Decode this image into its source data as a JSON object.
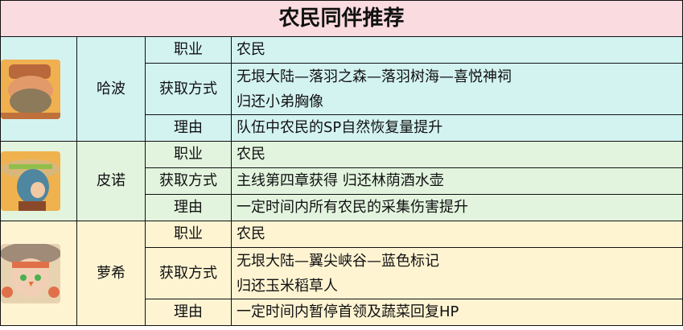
{
  "title": "农民同伴推荐",
  "labels": {
    "job": "职业",
    "obtain": "获取方式",
    "reason": "理由"
  },
  "companions": [
    {
      "name": "哈波",
      "avatar": "habo-portrait",
      "job": "农民",
      "obtain_lines": [
        "无垠大陆—落羽之森—落羽树海—喜悦神祠",
        "归还小弟胸像"
      ],
      "reason": "队伍中农民的SP自然恢复量提升"
    },
    {
      "name": "皮诺",
      "avatar": "pino-portrait",
      "job": "农民",
      "obtain_lines": [
        "主线第四章获得 归还林荫酒水壶"
      ],
      "reason": "一定时间内所有农民的采集伤害提升"
    },
    {
      "name": "萝希",
      "avatar": "roxi-portrait",
      "job": "农民",
      "obtain_lines": [
        "无垠大陆—翼尖峡谷—蓝色标记",
        "归还玉米稻草人"
      ],
      "reason": "一定时间内暂停首领及蔬菜回复HP"
    }
  ],
  "colors": {
    "title_bg": "#fadbe0",
    "row1_bg": "#d3f3f1",
    "row2_bg": "#e2f4de",
    "row3_bg": "#fef4d2"
  }
}
